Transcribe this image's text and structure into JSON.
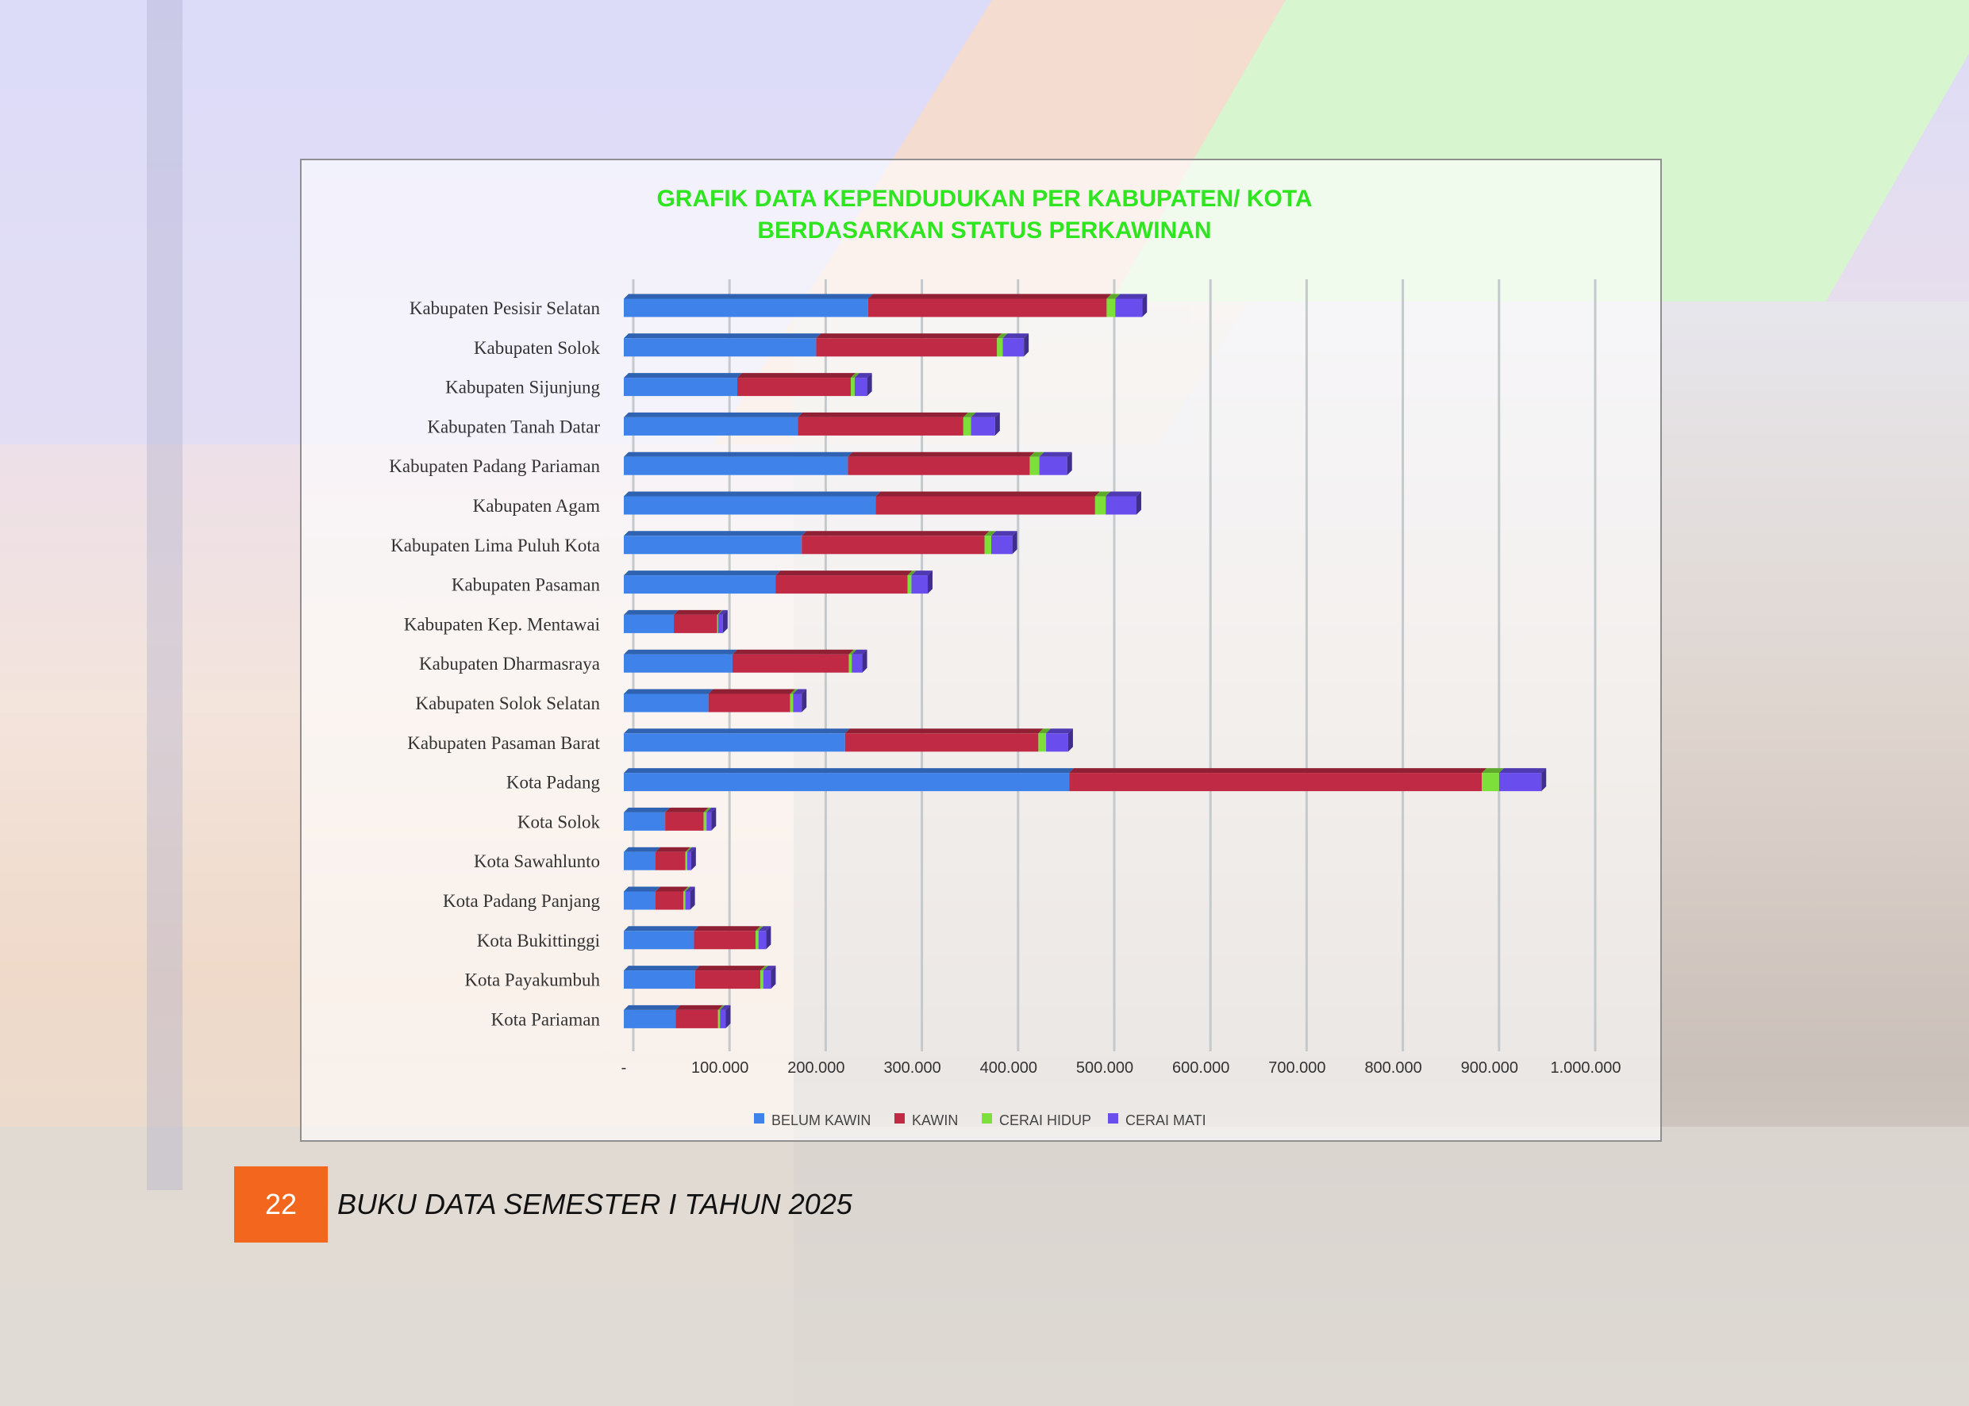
{
  "footer": {
    "page_number": "22",
    "book_title": "BUKU DATA SEMESTER I TAHUN 2025"
  },
  "colors": {
    "belum_kawin": "#3f83ea",
    "kawin": "#c02a45",
    "cerai_hidup": "#7de03a",
    "cerai_mati": "#6a4ded",
    "title": "#2ee51f",
    "footer_badge": "#f2661d"
  },
  "chart_data": {
    "type": "bar",
    "orientation": "horizontal",
    "stacked": true,
    "title_line1": "GRAFIK DATA KEPENDUDUKAN PER KABUPATEN/ KOTA",
    "title_line2": "BERDASARKAN STATUS PERKAWINAN",
    "categories": [
      "Kabupaten Pesisir Selatan",
      "Kabupaten Solok",
      "Kabupaten Sijunjung",
      "Kabupaten Tanah Datar",
      "Kabupaten Padang Pariaman",
      "Kabupaten Agam",
      "Kabupaten Lima Puluh Kota",
      "Kabupaten Pasaman",
      "Kabupaten Kep. Mentawai",
      "Kabupaten Dharmasraya",
      "Kabupaten Solok Selatan",
      "Kabupaten Pasaman Barat",
      "Kota Padang",
      "Kota Solok",
      "Kota Sawahlunto",
      "Kota Padang Panjang",
      "Kota Bukittinggi",
      "Kota Payakumbuh",
      "Kota Pariaman"
    ],
    "series": [
      {
        "name": "BELUM KAWIN",
        "values": [
          254000,
          200000,
          118000,
          181000,
          233000,
          262000,
          185000,
          158000,
          52000,
          113000,
          88000,
          230000,
          463000,
          43000,
          33000,
          33000,
          73000,
          74000,
          54000
        ]
      },
      {
        "name": "KAWIN",
        "values": [
          248000,
          188000,
          118000,
          172000,
          189000,
          228000,
          190000,
          137000,
          45000,
          121000,
          85000,
          201000,
          429000,
          40000,
          31000,
          29000,
          64000,
          68000,
          44000
        ]
      },
      {
        "name": "CERAI HIDUP",
        "values": [
          9000,
          6000,
          4000,
          8000,
          10000,
          11000,
          7000,
          4000,
          1000,
          3000,
          3000,
          8000,
          18000,
          3000,
          2000,
          2000,
          3000,
          3000,
          2000
        ]
      },
      {
        "name": "CERAI MATI",
        "values": [
          28000,
          22000,
          13000,
          25000,
          29000,
          32000,
          22000,
          17000,
          5000,
          11000,
          9000,
          23000,
          44000,
          5000,
          4000,
          5000,
          8000,
          8000,
          6000
        ]
      }
    ],
    "xlim": [
      0,
      1000000
    ],
    "x_ticks": [
      "-",
      "100.000",
      "200.000",
      "300.000",
      "400.000",
      "500.000",
      "600.000",
      "700.000",
      "800.000",
      "900.000",
      "1.000.000"
    ],
    "grid": true,
    "legend_position": "bottom"
  }
}
